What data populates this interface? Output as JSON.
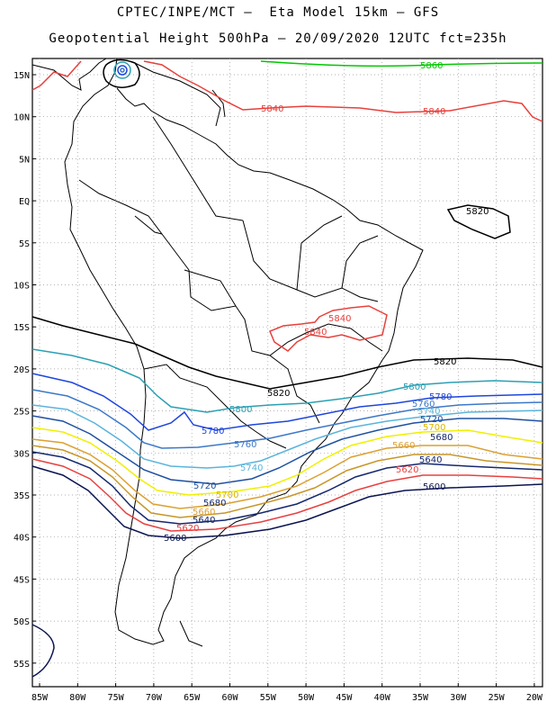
{
  "header": {
    "line1": "CPTEC/INPE/MCT –  Eta Model 15km – GFS",
    "line2": "Geopotential Height 500hPa – 20/09/2020 12UTC fct=235h"
  },
  "axes": {
    "lat_labels": [
      "15N",
      "10N",
      "5N",
      "EQ",
      "5S",
      "10S",
      "15S",
      "20S",
      "25S",
      "30S",
      "35S",
      "40S",
      "45S",
      "50S",
      "55S"
    ],
    "lon_labels": [
      "85W",
      "80W",
      "75W",
      "70W",
      "65W",
      "60W",
      "55W",
      "50W",
      "45W",
      "40W",
      "35W",
      "30W",
      "25W",
      "20W"
    ]
  },
  "contours": [
    {
      "value": "5860",
      "color": "#00c800"
    },
    {
      "value": "5840",
      "color": "#e8403c"
    },
    {
      "value": "5820",
      "color": "#000000"
    },
    {
      "value": "5800",
      "color": "#2aa0b4"
    },
    {
      "value": "5780",
      "color": "#1e46dc"
    },
    {
      "value": "5760",
      "color": "#3c78c8"
    },
    {
      "value": "5740",
      "color": "#5ab4dc"
    },
    {
      "value": "5720",
      "color": "#1e50a0"
    },
    {
      "value": "5700",
      "color": "#f0f000"
    },
    {
      "value": "5680",
      "color": "#dca032"
    },
    {
      "value": "5660",
      "color": "#c89628"
    },
    {
      "value": "5640",
      "color": "#14286e"
    },
    {
      "value": "5620",
      "color": "#e84040"
    },
    {
      "value": "5600",
      "color": "#0a1450"
    }
  ]
}
